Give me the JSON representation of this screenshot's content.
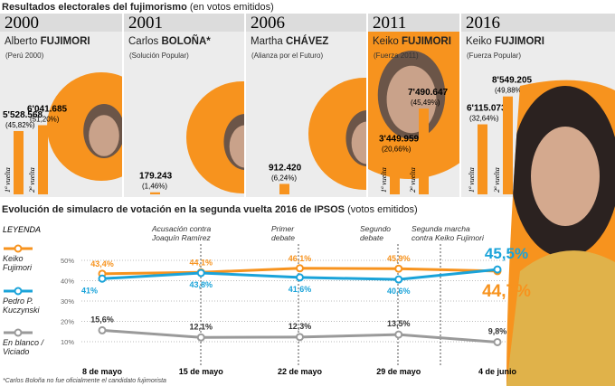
{
  "chart_data": [
    {
      "type": "bar",
      "title": "Resultados electorales del fujimorismo",
      "subtitle": "(en votos emitidos)",
      "ylim": [
        0,
        9000000
      ],
      "color": "#f7931e",
      "panels": [
        {
          "year": "2000",
          "first_name": "Alberto",
          "last_name": "FUJIMORI",
          "party": "(Perú 2000)",
          "rounds": [
            {
              "label": "1ª vuelta",
              "value": 5528568,
              "value_label": "5'528.568",
              "percent": 45.82,
              "percent_label": "(45,82%)"
            },
            {
              "label": "2ª vuelta",
              "value": 6041685,
              "value_label": "6'041.685",
              "percent": 51.2,
              "percent_label": "(51,20%)"
            }
          ]
        },
        {
          "year": "2001",
          "first_name": "Carlos",
          "last_name": "BOLOÑA*",
          "party": "(Solución Popular)",
          "rounds": [
            {
              "value": 179243,
              "value_label": "179.243",
              "percent": 1.46,
              "percent_label": "(1,46%)"
            }
          ]
        },
        {
          "year": "2006",
          "first_name": "Martha",
          "last_name": "CHÁVEZ",
          "party": "(Alianza por el Futuro)",
          "rounds": [
            {
              "value": 912420,
              "value_label": "912.420",
              "percent": 6.24,
              "percent_label": "(6,24%)"
            }
          ]
        },
        {
          "year": "2011",
          "first_name": "Keiko",
          "last_name": "FUJIMORI",
          "party": "(Fuerza 2011)",
          "rounds": [
            {
              "label": "1ª vuelta",
              "value": 3449959,
              "value_label": "3'449.959",
              "percent": 20.66,
              "percent_label": "(20,66%)"
            },
            {
              "label": "2ª vuelta",
              "value": 7490647,
              "value_label": "7'490.647",
              "percent": 45.49,
              "percent_label": "(45,49%)"
            }
          ]
        },
        {
          "year": "2016",
          "first_name": "Keiko",
          "last_name": "FUJIMORI",
          "party": "(Fuerza Popular)",
          "rounds": [
            {
              "label": "1ª vuelta",
              "value": 6115073,
              "value_label": "6'115.073",
              "percent": 32.64,
              "percent_label": "(32,64%)"
            },
            {
              "label": "2ª vuelta",
              "value": 8549205,
              "value_label": "8'549.205",
              "percent": 49.88,
              "percent_label": "(49,88%)"
            }
          ]
        }
      ],
      "footnote": "*Carlos Boloña no fue oficialmente el candidato fujimorista"
    },
    {
      "type": "line",
      "title": "Evolución de simulacro de votación en la segunda vuelta 2016 de IPSOS",
      "subtitle": "(votos emitidos)",
      "legend_title": "LEYENDA",
      "categories": [
        "8 de mayo",
        "15 de mayo",
        "22 de mayo",
        "29 de mayo",
        "4 de junio"
      ],
      "ylim": [
        0,
        50
      ],
      "yticks": [
        {
          "value": 10,
          "label": "10%"
        },
        {
          "value": 20,
          "label": "20%"
        },
        {
          "value": 30,
          "label": "30%"
        },
        {
          "value": 40,
          "label": "40%"
        },
        {
          "value": 50,
          "label": "50%"
        }
      ],
      "grid": true,
      "series": [
        {
          "name": "Keiko Fujimori",
          "color": "#f7931e",
          "values": [
            43.4,
            44.1,
            46.1,
            45.9,
            44.7
          ],
          "value_labels": [
            "43,4%",
            "44,1%",
            "46,1%",
            "45,9%",
            "44,7%"
          ]
        },
        {
          "name": "Pedro P. Kuczynski",
          "color": "#1aa3d9",
          "values": [
            41,
            43.8,
            41.6,
            40.6,
            45.5
          ],
          "value_labels": [
            "41%",
            "43,8%",
            "41,6%",
            "40,6%",
            "45,5%"
          ]
        },
        {
          "name": "En blanco / Viciado",
          "color": "#9a9a9a",
          "values": [
            15.6,
            12.1,
            12.3,
            13.5,
            9.8
          ],
          "value_labels": [
            "15,6%",
            "12,1%",
            "12,3%",
            "13,5%",
            "9,8%"
          ]
        }
      ],
      "annotations": [
        "Acusación contra Joaquín Ramírez",
        "Primer debate",
        "Segundo debate",
        "Segunda marcha contra Keiko Fujimori"
      ]
    }
  ]
}
